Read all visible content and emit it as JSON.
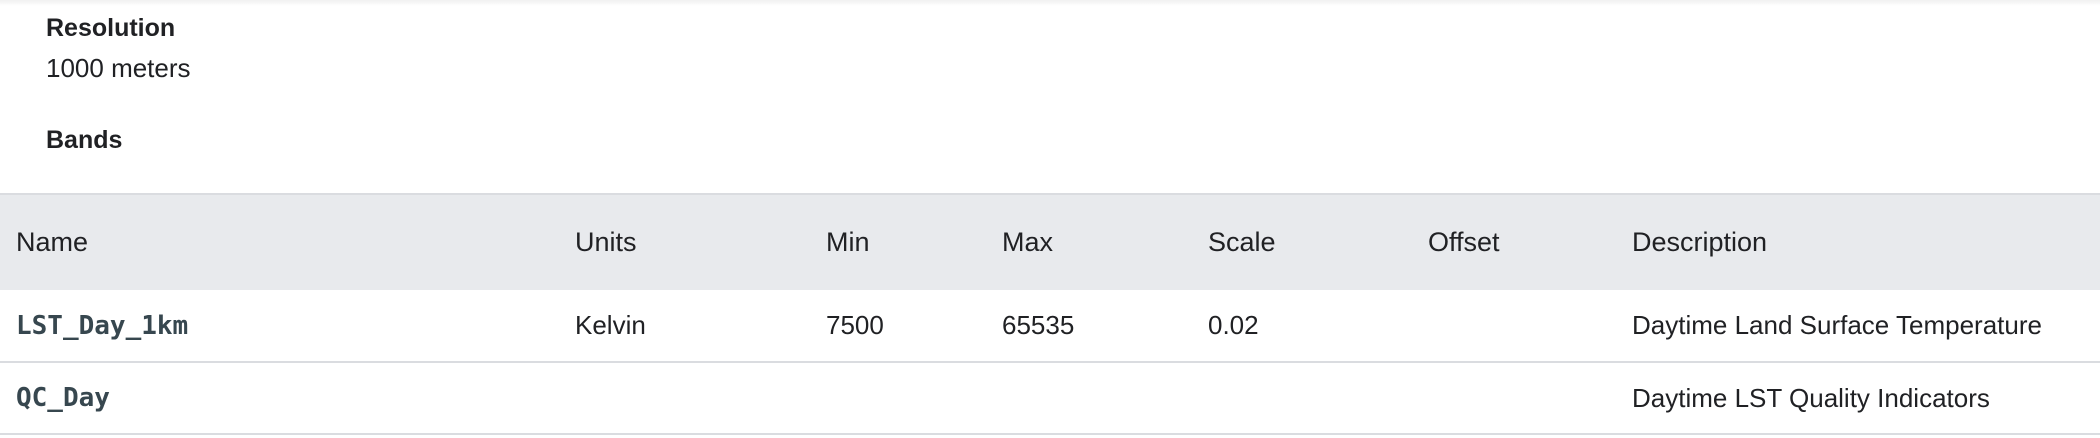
{
  "resolution": {
    "label": "Resolution",
    "value": "1000 meters"
  },
  "bands": {
    "label": "Bands",
    "columns": [
      "Name",
      "Units",
      "Min",
      "Max",
      "Scale",
      "Offset",
      "Description"
    ],
    "rows": [
      [
        "LST_Day_1km",
        "Kelvin",
        "7500",
        "65535",
        "0.02",
        "",
        "Daytime Land Surface Temperature"
      ],
      [
        "QC_Day",
        "",
        "",
        "",
        "",
        "",
        "Daytime LST Quality Indicators"
      ]
    ]
  },
  "colors": {
    "header_bg": "#e8eaed",
    "border": "#dadce0",
    "text": "#202124",
    "band_name": "#37474f"
  }
}
